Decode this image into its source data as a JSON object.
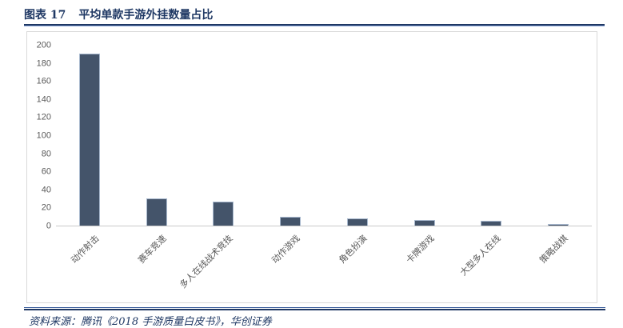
{
  "header": {
    "figure_label": "图表 17",
    "figure_title": "平均单款手游外挂数量占比"
  },
  "chart_data": {
    "type": "bar",
    "title": "平均单款手游外挂数量占比",
    "categories": [
      "动作射击",
      "赛车竞速",
      "多人在线战术竞技",
      "动作游戏",
      "角色扮演",
      "卡牌游戏",
      "大型多人在线",
      "策略战棋"
    ],
    "values": [
      190,
      30,
      27,
      10,
      8,
      6,
      5,
      2
    ],
    "xlabel": "",
    "ylabel": "",
    "ylim": [
      0,
      200
    ],
    "ytick_step": 20,
    "grid": false,
    "legend": "none",
    "bar_color": "#44546A",
    "bar_border_color": "#A9B9CE"
  },
  "footer": {
    "source_text": "资料来源：腾讯《2018 手游质量白皮书》，华创证券"
  },
  "colors": {
    "accent_navy": "#1F3864",
    "rule_light_blue": "#8FAADC",
    "axis_text_gray": "#595959",
    "frame_border_gray": "#D9D9D9"
  }
}
